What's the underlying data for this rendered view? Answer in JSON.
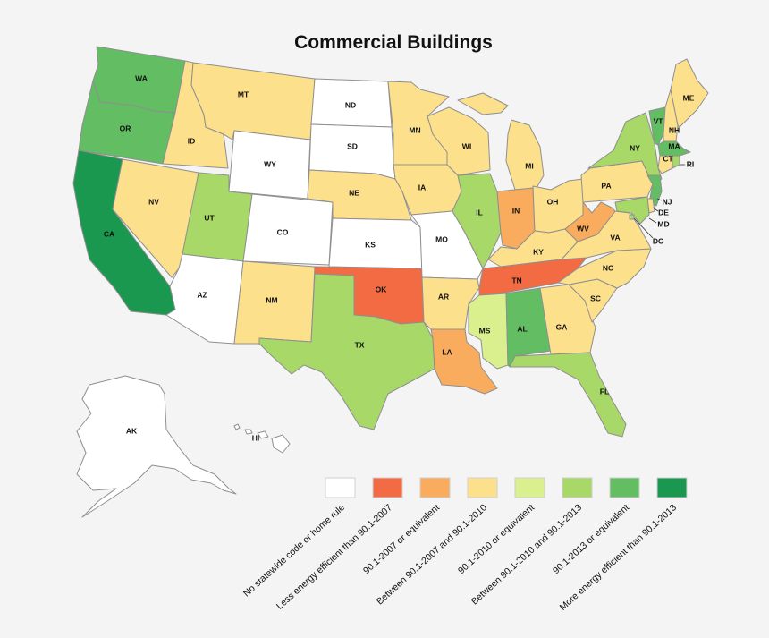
{
  "title": "Commercial Buildings",
  "colors": {
    "none": "#ffffff",
    "lt2007": "#f26b43",
    "eq2007": "#f9ac5e",
    "b0710": "#fde08c",
    "eq2010": "#daef8e",
    "b1013": "#a7d868",
    "eq2013": "#62bd63",
    "gt2013": "#1a9850"
  },
  "legend": [
    {
      "key": "none",
      "label": "No statewide code or home rule"
    },
    {
      "key": "lt2007",
      "label": "Less energy efficient than 90.1-2007"
    },
    {
      "key": "eq2007",
      "label": "90.1-2007 or equivalent"
    },
    {
      "key": "b0710",
      "label": "Between 90.1-2007 and 90.1-2010"
    },
    {
      "key": "eq2010",
      "label": "90.1-2010 or equivalent"
    },
    {
      "key": "b1013",
      "label": "Between 90.1-2010 and 90.1-2013"
    },
    {
      "key": "eq2013",
      "label": "90.1-2013 or equivalent"
    },
    {
      "key": "gt2013",
      "label": "More energy efficient than 90.1-2013"
    }
  ],
  "states": {
    "WA": {
      "label": "WA",
      "cat": "eq2013"
    },
    "OR": {
      "label": "OR",
      "cat": "eq2013"
    },
    "CA": {
      "label": "CA",
      "cat": "gt2013"
    },
    "ID": {
      "label": "ID",
      "cat": "b0710"
    },
    "NV": {
      "label": "NV",
      "cat": "b0710"
    },
    "MT": {
      "label": "MT",
      "cat": "b0710"
    },
    "WY": {
      "label": "WY",
      "cat": "none"
    },
    "UT": {
      "label": "UT",
      "cat": "b1013"
    },
    "AZ": {
      "label": "AZ",
      "cat": "none"
    },
    "CO": {
      "label": "CO",
      "cat": "none"
    },
    "NM": {
      "label": "NM",
      "cat": "b0710"
    },
    "ND": {
      "label": "ND",
      "cat": "none"
    },
    "SD": {
      "label": "SD",
      "cat": "none"
    },
    "NE": {
      "label": "NE",
      "cat": "b0710"
    },
    "KS": {
      "label": "KS",
      "cat": "none"
    },
    "OK": {
      "label": "OK",
      "cat": "lt2007"
    },
    "TX": {
      "label": "TX",
      "cat": "b1013"
    },
    "MN": {
      "label": "MN",
      "cat": "b0710"
    },
    "IA": {
      "label": "IA",
      "cat": "b0710"
    },
    "MO": {
      "label": "MO",
      "cat": "none"
    },
    "AR": {
      "label": "AR",
      "cat": "b0710"
    },
    "LA": {
      "label": "LA",
      "cat": "eq2007"
    },
    "WI": {
      "label": "WI",
      "cat": "b0710"
    },
    "IL": {
      "label": "IL",
      "cat": "b1013"
    },
    "MI": {
      "label": "MI",
      "cat": "b0710"
    },
    "IN": {
      "label": "IN",
      "cat": "eq2007"
    },
    "OH": {
      "label": "OH",
      "cat": "b0710"
    },
    "KY": {
      "label": "KY",
      "cat": "b0710"
    },
    "TN": {
      "label": "TN",
      "cat": "lt2007"
    },
    "MS": {
      "label": "MS",
      "cat": "eq2010"
    },
    "AL": {
      "label": "AL",
      "cat": "eq2013"
    },
    "GA": {
      "label": "GA",
      "cat": "b0710"
    },
    "FL": {
      "label": "FL",
      "cat": "b1013"
    },
    "SC": {
      "label": "SC",
      "cat": "b0710"
    },
    "NC": {
      "label": "NC",
      "cat": "b0710"
    },
    "VA": {
      "label": "VA",
      "cat": "b0710"
    },
    "WV": {
      "label": "WV",
      "cat": "eq2007"
    },
    "PA": {
      "label": "PA",
      "cat": "b0710"
    },
    "NY": {
      "label": "NY",
      "cat": "b1013"
    },
    "VT": {
      "label": "VT",
      "cat": "eq2013"
    },
    "NH": {
      "label": "NH",
      "cat": "b0710"
    },
    "ME": {
      "label": "ME",
      "cat": "b0710"
    },
    "MA": {
      "label": "MA",
      "cat": "eq2013"
    },
    "CT": {
      "label": "CT",
      "cat": "b0710"
    },
    "RI": {
      "label": "RI",
      "cat": "b1013"
    },
    "NJ": {
      "label": "NJ",
      "cat": "eq2013"
    },
    "DE": {
      "label": "DE",
      "cat": "b0710"
    },
    "MD": {
      "label": "MD",
      "cat": "b1013"
    },
    "DC": {
      "label": "DC",
      "cat": "b1013"
    },
    "AK": {
      "label": "AK",
      "cat": "none"
    },
    "HI": {
      "label": "HI",
      "cat": "none"
    }
  }
}
